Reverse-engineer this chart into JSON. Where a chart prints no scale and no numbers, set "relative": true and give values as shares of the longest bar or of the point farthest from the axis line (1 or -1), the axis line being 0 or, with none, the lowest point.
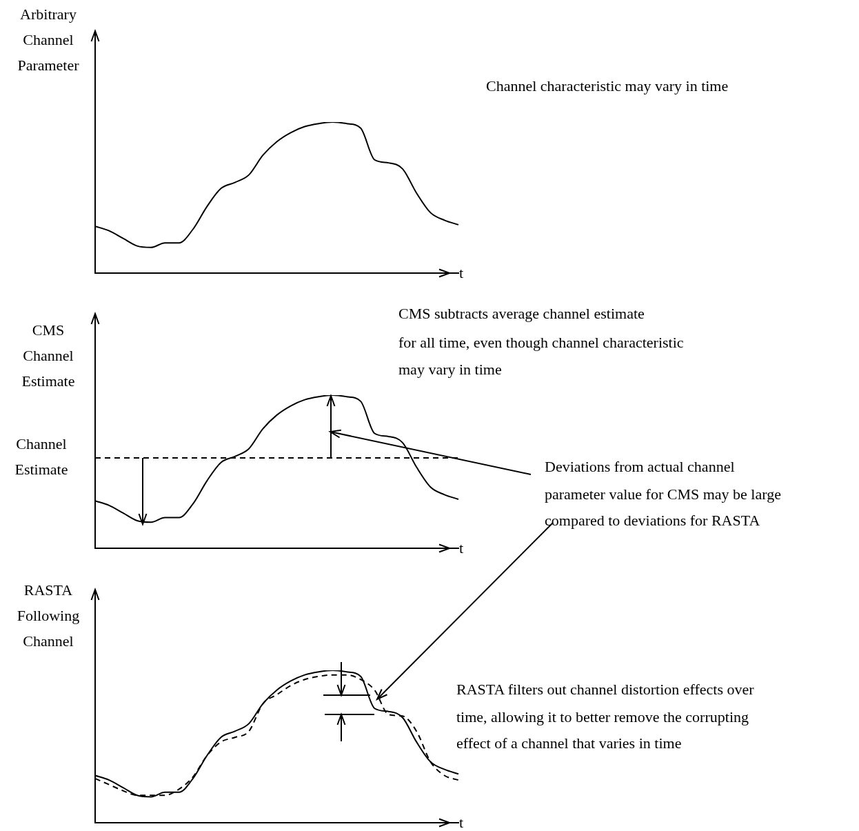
{
  "chart_data": [
    {
      "type": "line",
      "relative": true,
      "ylabel": "Arbitrary Channel Parameter",
      "xlabel": "t",
      "categories": [
        null,
        null,
        null,
        null,
        null,
        null,
        null,
        null,
        null,
        null,
        null,
        null,
        null,
        null,
        null,
        null,
        null,
        null,
        null,
        null,
        null,
        null,
        null,
        null,
        null,
        null,
        null
      ],
      "series": [
        {
          "color": "#000000",
          "values": [
            0.31,
            0.28,
            0.23,
            0.18,
            0.17,
            0.2,
            0.2,
            0.29,
            0.44,
            0.56,
            0.6,
            0.65,
            0.78,
            0.87,
            0.93,
            0.97,
            0.99,
            1,
            0.99,
            0.96,
            0.75,
            0.73,
            0.69,
            0.53,
            0.4,
            0.35,
            0.32
          ]
        }
      ],
      "annotations": [
        "Channel characteristic may vary in time"
      ],
      "marker": "none",
      "line_style": "solid"
    },
    {
      "type": "line",
      "relative": true,
      "ylabel": "CMS Channel Estimate",
      "xlabel": "t",
      "categories": [
        null,
        null,
        null,
        null,
        null,
        null,
        null,
        null,
        null,
        null,
        null,
        null,
        null,
        null,
        null,
        null,
        null,
        null,
        null,
        null,
        null,
        null,
        null,
        null,
        null,
        null,
        null
      ],
      "series": [
        {
          "color": "#000000",
          "values": [
            0.31,
            0.28,
            0.23,
            0.18,
            0.17,
            0.2,
            0.2,
            0.29,
            0.44,
            0.56,
            0.6,
            0.65,
            0.78,
            0.87,
            0.93,
            0.97,
            0.99,
            1,
            0.99,
            0.96,
            0.75,
            0.73,
            0.69,
            0.53,
            0.4,
            0.35,
            0.32
          ]
        }
      ],
      "ref_lines": [
        {
          "axis": "y",
          "value": 0.59,
          "label": "Channel Estimate",
          "color": "#000000",
          "line_style": "dashed"
        }
      ],
      "annotations": [
        "CMS subtracts average channel estimate",
        "for all time, even though channel characteristic",
        "may vary in time",
        "Deviations from actual channel",
        "parameter value for CMS may be large",
        "compared to deviations for RASTA"
      ],
      "marker": "none",
      "line_style": "solid"
    },
    {
      "type": "line",
      "relative": true,
      "ylabel": "RASTA Following Channel",
      "xlabel": "t",
      "categories": [
        null,
        null,
        null,
        null,
        null,
        null,
        null,
        null,
        null,
        null,
        null,
        null,
        null,
        null,
        null,
        null,
        null,
        null,
        null,
        null,
        null,
        null,
        null,
        null,
        null,
        null,
        null
      ],
      "series": [
        {
          "color": "#000000",
          "line_style": "solid",
          "values": [
            0.31,
            0.28,
            0.23,
            0.18,
            0.17,
            0.2,
            0.2,
            0.29,
            0.44,
            0.56,
            0.6,
            0.65,
            0.78,
            0.87,
            0.93,
            0.97,
            0.99,
            1,
            0.99,
            0.96,
            0.75,
            0.73,
            0.69,
            0.53,
            0.4,
            0.35,
            0.32
          ]
        },
        {
          "color": "#000000",
          "line_style": "dashed",
          "values": [
            0.29,
            0.25,
            0.21,
            0.18,
            0.18,
            0.18,
            0.22,
            0.3,
            0.44,
            0.53,
            0.56,
            0.6,
            0.78,
            0.84,
            0.9,
            0.94,
            0.96,
            0.97,
            0.97,
            0.94,
            0.87,
            0.71,
            0.7,
            0.6,
            0.4,
            0.31,
            0.28
          ]
        }
      ],
      "annotations": [
        "RASTA filters out channel distortion effects over",
        "time, allowing it to better remove the corrupting",
        "effect of a channel that varies in time"
      ],
      "marker": "none"
    }
  ]
}
